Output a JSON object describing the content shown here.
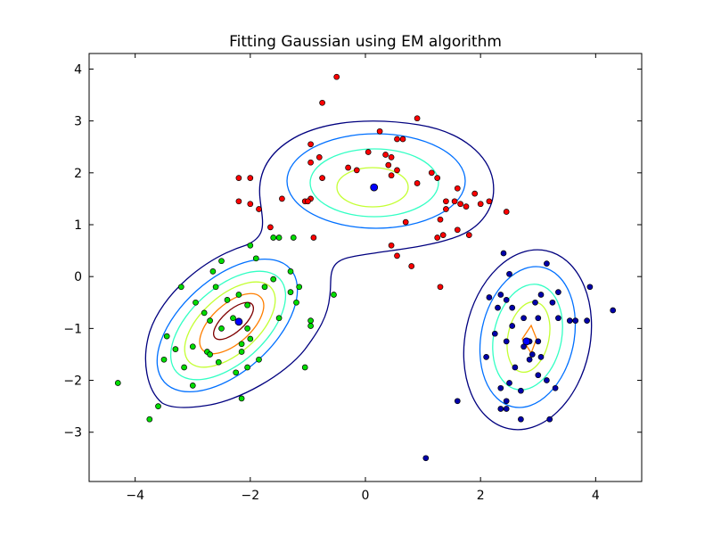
{
  "chart_data": {
    "type": "scatter",
    "title": "Fitting Gaussian using EM algorithm",
    "xlabel": "",
    "ylabel": "",
    "xlim": [
      -4.8,
      4.8
    ],
    "ylim": [
      -3.95,
      4.3
    ],
    "x_ticks": [
      -4,
      -2,
      0,
      2,
      4
    ],
    "x_tick_labels": [
      "−4",
      "−2",
      "0",
      "2",
      "4"
    ],
    "y_ticks": [
      -3,
      -2,
      -1,
      0,
      1,
      2,
      3,
      4
    ],
    "y_tick_labels": [
      "−3",
      "−2",
      "−1",
      "0",
      "1",
      "2",
      "3",
      "4"
    ],
    "grid": false,
    "series": [
      {
        "color": "#ff0000",
        "points": [
          [
            -0.5,
            3.85
          ],
          [
            -0.75,
            3.35
          ],
          [
            0.9,
            3.05
          ],
          [
            0.25,
            2.8
          ],
          [
            0.55,
            2.65
          ],
          [
            0.65,
            2.65
          ],
          [
            -0.95,
            2.55
          ],
          [
            0.05,
            2.4
          ],
          [
            0.35,
            2.35
          ],
          [
            0.45,
            2.3
          ],
          [
            -0.8,
            2.3
          ],
          [
            -0.95,
            2.2
          ],
          [
            0.4,
            2.15
          ],
          [
            0.55,
            2.05
          ],
          [
            -0.3,
            2.1
          ],
          [
            -0.15,
            2.05
          ],
          [
            1.15,
            2.0
          ],
          [
            0.45,
            1.95
          ],
          [
            1.25,
            1.9
          ],
          [
            0.9,
            1.8
          ],
          [
            1.6,
            1.7
          ],
          [
            -2.2,
            1.9
          ],
          [
            -2.0,
            1.9
          ],
          [
            -0.75,
            1.9
          ],
          [
            -0.95,
            1.5
          ],
          [
            -2.0,
            1.4
          ],
          [
            -1.85,
            1.3
          ],
          [
            -2.2,
            1.45
          ],
          [
            -1.45,
            1.5
          ],
          [
            -1.05,
            1.45
          ],
          [
            -1.0,
            1.45
          ],
          [
            1.4,
            1.45
          ],
          [
            1.55,
            1.45
          ],
          [
            1.65,
            1.4
          ],
          [
            1.75,
            1.35
          ],
          [
            1.9,
            1.6
          ],
          [
            2.0,
            1.4
          ],
          [
            2.15,
            1.45
          ],
          [
            2.45,
            1.25
          ],
          [
            1.4,
            1.3
          ],
          [
            1.3,
            1.1
          ],
          [
            0.7,
            1.05
          ],
          [
            -1.65,
            0.95
          ],
          [
            1.6,
            0.9
          ],
          [
            1.35,
            0.8
          ],
          [
            1.8,
            0.8
          ],
          [
            -0.9,
            0.75
          ],
          [
            1.25,
            0.75
          ],
          [
            0.45,
            0.6
          ],
          [
            0.55,
            0.4
          ],
          [
            0.8,
            0.2
          ],
          [
            1.3,
            -0.2
          ]
        ]
      },
      {
        "color": "#00dd00",
        "points": [
          [
            -1.5,
            0.75
          ],
          [
            -1.25,
            0.75
          ],
          [
            -1.6,
            0.75
          ],
          [
            -2.0,
            0.6
          ],
          [
            -1.9,
            0.35
          ],
          [
            -2.5,
            0.3
          ],
          [
            -2.65,
            0.1
          ],
          [
            -1.3,
            0.1
          ],
          [
            -1.6,
            -0.05
          ],
          [
            -3.2,
            -0.2
          ],
          [
            -2.6,
            -0.2
          ],
          [
            -1.15,
            -0.2
          ],
          [
            -1.75,
            -0.2
          ],
          [
            -1.3,
            -0.3
          ],
          [
            -0.55,
            -0.35
          ],
          [
            -2.2,
            -0.35
          ],
          [
            -2.4,
            -0.45
          ],
          [
            -2.95,
            -0.5
          ],
          [
            -2.05,
            -0.55
          ],
          [
            -1.2,
            -0.5
          ],
          [
            -2.8,
            -0.7
          ],
          [
            -2.3,
            -0.8
          ],
          [
            -1.5,
            -0.8
          ],
          [
            -0.95,
            -0.85
          ],
          [
            -2.7,
            -0.85
          ],
          [
            -0.95,
            -0.95
          ],
          [
            -2.5,
            -1.0
          ],
          [
            -2.05,
            -1.0
          ],
          [
            -3.45,
            -1.15
          ],
          [
            -2.0,
            -1.2
          ],
          [
            -2.15,
            -1.3
          ],
          [
            -3.0,
            -1.35
          ],
          [
            -2.15,
            -1.45
          ],
          [
            -2.75,
            -1.45
          ],
          [
            -2.7,
            -1.5
          ],
          [
            -3.3,
            -1.4
          ],
          [
            -2.55,
            -1.65
          ],
          [
            -3.5,
            -1.6
          ],
          [
            -1.85,
            -1.6
          ],
          [
            -3.15,
            -1.75
          ],
          [
            -2.05,
            -1.75
          ],
          [
            -2.25,
            -1.85
          ],
          [
            -1.05,
            -1.75
          ],
          [
            -3.0,
            -2.1
          ],
          [
            -4.3,
            -2.05
          ],
          [
            -2.15,
            -2.35
          ],
          [
            -3.6,
            -2.5
          ],
          [
            -3.75,
            -2.75
          ]
        ]
      },
      {
        "color": "#0000aa",
        "points": [
          [
            2.4,
            0.45
          ],
          [
            2.5,
            0.05
          ],
          [
            3.15,
            0.25
          ],
          [
            3.35,
            -0.3
          ],
          [
            3.9,
            -0.2
          ],
          [
            2.15,
            -0.4
          ],
          [
            2.35,
            -0.35
          ],
          [
            2.45,
            -0.45
          ],
          [
            3.05,
            -0.35
          ],
          [
            2.3,
            -0.6
          ],
          [
            2.55,
            -0.6
          ],
          [
            3.25,
            -0.5
          ],
          [
            2.95,
            -0.5
          ],
          [
            4.3,
            -0.65
          ],
          [
            2.75,
            -0.8
          ],
          [
            3.0,
            -0.8
          ],
          [
            2.55,
            -0.95
          ],
          [
            3.65,
            -0.85
          ],
          [
            3.85,
            -0.85
          ],
          [
            2.25,
            -1.1
          ],
          [
            3.35,
            -0.8
          ],
          [
            3.55,
            -0.85
          ],
          [
            2.45,
            -1.25
          ],
          [
            2.75,
            -1.35
          ],
          [
            2.85,
            -1.25
          ],
          [
            3.0,
            -1.25
          ],
          [
            2.9,
            -1.5
          ],
          [
            3.05,
            -1.55
          ],
          [
            2.1,
            -1.55
          ],
          [
            2.85,
            -1.6
          ],
          [
            2.6,
            -1.75
          ],
          [
            3.0,
            -1.9
          ],
          [
            3.15,
            -2.0
          ],
          [
            2.5,
            -2.05
          ],
          [
            2.35,
            -2.15
          ],
          [
            3.3,
            -2.15
          ],
          [
            2.7,
            -2.2
          ],
          [
            2.45,
            -2.4
          ],
          [
            1.6,
            -2.4
          ],
          [
            2.35,
            -2.55
          ],
          [
            2.45,
            -2.55
          ],
          [
            3.2,
            -2.75
          ],
          [
            2.7,
            -2.75
          ],
          [
            1.05,
            -3.5
          ]
        ]
      }
    ],
    "means": [
      {
        "x": 0.15,
        "y": 1.72
      },
      {
        "x": -2.2,
        "y": -0.87
      },
      {
        "x": 2.8,
        "y": -1.25
      }
    ],
    "contour_colors": [
      "#00007f",
      "#0070ff",
      "#33ffc4",
      "#c4ff33",
      "#ff7f00",
      "#7f0000"
    ]
  }
}
